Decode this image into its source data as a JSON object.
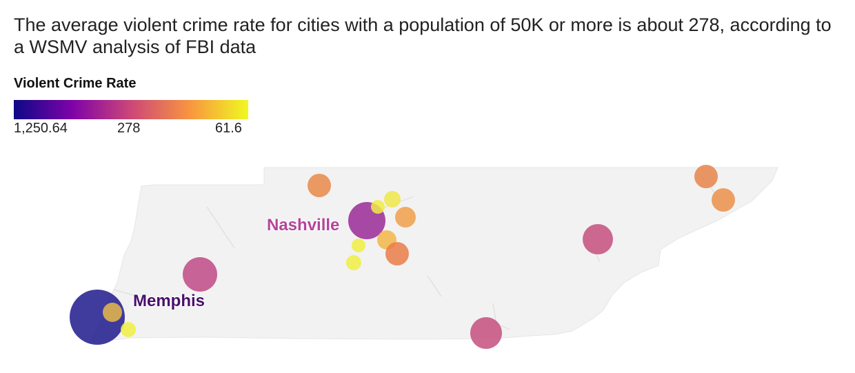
{
  "title": "The average violent crime rate for cities with a population of 50K or more is about 278, according to a WSMV analysis of FBI data",
  "legend": {
    "title": "Violent Crime Rate",
    "ticks": [
      "1,250.64",
      "278",
      "61.6"
    ],
    "colors": [
      "#0d0887",
      "#7e03a8",
      "#cc4778",
      "#f89540",
      "#f0f921"
    ]
  },
  "labels": {
    "nashville": "Nashville",
    "memphis": "Memphis",
    "nashville_color": "#b5449a",
    "memphis_color": "#4a0f6e"
  },
  "map": {
    "region": "Tennessee",
    "land_color": "#f2f2f2"
  }
}
